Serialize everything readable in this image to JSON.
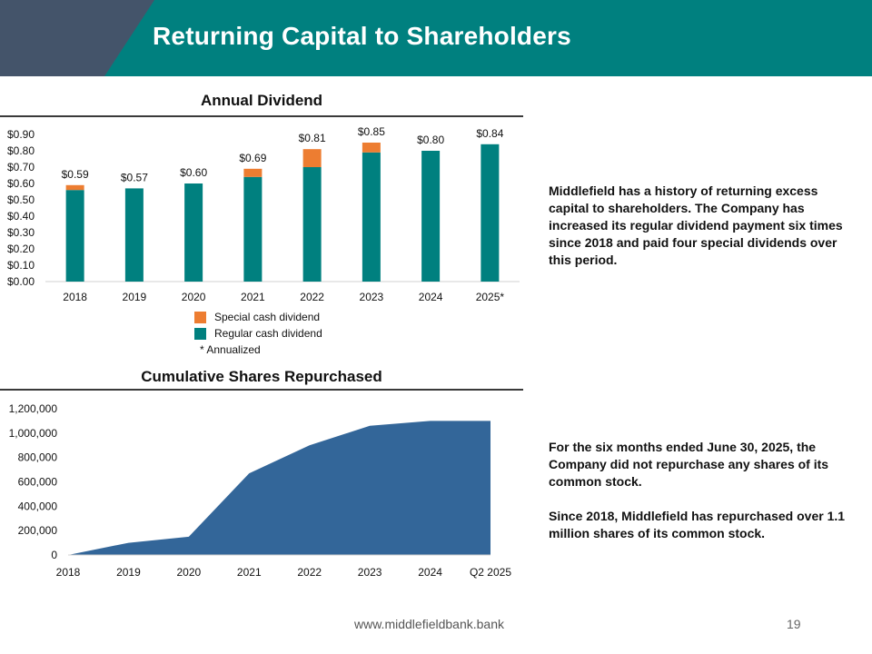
{
  "slide": {
    "title": "Returning Capital to Shareholders",
    "footer_url": "www.middlefieldbank.bank",
    "page_number": "19",
    "colors": {
      "header_dark": "#44546a",
      "header_teal": "#00807f",
      "area_blue": "#336699"
    }
  },
  "dividend_text": "Middlefield has a history of returning excess capital to shareholders.  The Company has increased its regular dividend payment six times since 2018 and paid four special dividends over this period.",
  "repurchase_text_1": "For the six months ended June 30, 2025, the Company did not repurchase any shares of its common stock.",
  "repurchase_text_2": "Since 2018, Middlefield has repurchased over 1.1 million shares of its common stock.",
  "chart_data": [
    {
      "type": "bar",
      "stacked": true,
      "title": "Annual Dividend",
      "categories": [
        "2018",
        "2019",
        "2020",
        "2021",
        "2022",
        "2023",
        "2024",
        "2025*"
      ],
      "series": [
        {
          "name": "Regular cash dividend",
          "color": "#00807f",
          "values": [
            0.56,
            0.57,
            0.6,
            0.64,
            0.7,
            0.79,
            0.8,
            0.84
          ]
        },
        {
          "name": "Special cash dividend",
          "color": "#ed7d31",
          "values": [
            0.03,
            0.0,
            0.0,
            0.05,
            0.11,
            0.06,
            0.0,
            0.0
          ]
        }
      ],
      "totals_labels": [
        "$0.59",
        "$0.57",
        "$0.60",
        "$0.69",
        "$0.81",
        "$0.85",
        "$0.80",
        "$0.84"
      ],
      "y_ticks": [
        "$0.00",
        "$0.10",
        "$0.20",
        "$0.30",
        "$0.40",
        "$0.50",
        "$0.60",
        "$0.70",
        "$0.80",
        "$0.90"
      ],
      "ylim": [
        0,
        0.9
      ],
      "legend": [
        "Special cash dividend",
        "Regular cash dividend"
      ],
      "note": "*   Annualized"
    },
    {
      "type": "area",
      "title": "Cumulative Shares Repurchased",
      "x": [
        "2018",
        "2019",
        "2020",
        "2021",
        "2022",
        "2023",
        "2024",
        "Q2 2025"
      ],
      "values": [
        0,
        100000,
        150000,
        670000,
        900000,
        1060000,
        1100000,
        1100000
      ],
      "y_ticks": [
        "0",
        "200,000",
        "400,000",
        "600,000",
        "800,000",
        "1,000,000",
        "1,200,000"
      ],
      "ylim": [
        0,
        1200000
      ],
      "color": "#336699"
    }
  ]
}
